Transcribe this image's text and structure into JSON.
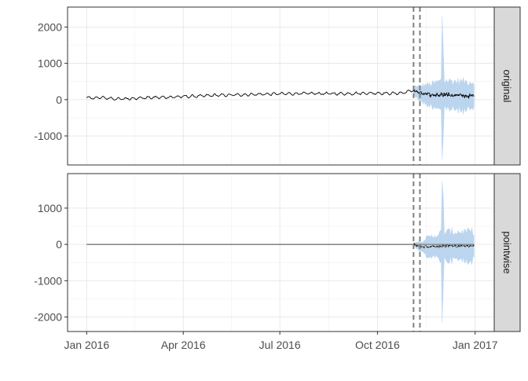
{
  "chart_data": {
    "type": "line",
    "title": "",
    "xlabel": "",
    "ylabel": "",
    "x_ticks": [
      "Jan 2016",
      "Apr 2016",
      "Jul 2016",
      "Oct 2016",
      "Jan 2017"
    ],
    "x_tick_dates": [
      "2016-01-01",
      "2016-04-01",
      "2016-07-01",
      "2016-10-01",
      "2017-01-01"
    ],
    "xlim": [
      "2015-12-14",
      "2017-01-19"
    ],
    "grid": true,
    "legend": "none",
    "vertical_reference_lines": [
      "2016-11-04",
      "2016-11-10"
    ],
    "series_colors": {
      "observed": "#000000",
      "prediction": "#000000",
      "interval": "#b9d3ee",
      "reference_lines": "#808080",
      "zero_line": "#808080"
    },
    "panels": [
      {
        "strip_label": "original",
        "y_ticks": [
          "2000",
          "1000",
          "0",
          "-1000"
        ],
        "y_tick_values": [
          2000,
          1000,
          0,
          -1000
        ],
        "ylim": [
          -1800,
          2550
        ],
        "observed": {
          "start_date": "2016-01-01",
          "end_date": "2016-11-04",
          "knots": [
            [
              "2016-01-01",
              40
            ],
            [
              "2016-01-15",
              55
            ],
            [
              "2016-02-01",
              15
            ],
            [
              "2016-02-15",
              40
            ],
            [
              "2016-03-01",
              55
            ],
            [
              "2016-03-15",
              65
            ],
            [
              "2016-04-01",
              85
            ],
            [
              "2016-04-15",
              95
            ],
            [
              "2016-05-01",
              120
            ],
            [
              "2016-05-15",
              125
            ],
            [
              "2016-06-01",
              140
            ],
            [
              "2016-06-15",
              150
            ],
            [
              "2016-07-01",
              160
            ],
            [
              "2016-07-15",
              165
            ],
            [
              "2016-08-01",
              170
            ],
            [
              "2016-08-15",
              165
            ],
            [
              "2016-09-01",
              165
            ],
            [
              "2016-09-15",
              175
            ],
            [
              "2016-10-01",
              180
            ],
            [
              "2016-10-15",
              170
            ],
            [
              "2016-10-25",
              185
            ],
            [
              "2016-11-04",
              260
            ]
          ],
          "weekly_swing": 30
        },
        "forecast": {
          "start_date": "2016-11-04",
          "end_date": "2016-12-31",
          "center_knots": [
            [
              "2016-11-04",
              250
            ],
            [
              "2016-11-10",
              170
            ],
            [
              "2016-11-20",
              120
            ],
            [
              "2016-12-01",
              150
            ],
            [
              "2016-12-15",
              110
            ],
            [
              "2016-12-31",
              95
            ]
          ],
          "band_half_width_knots": [
            [
              "2016-11-04",
              120
            ],
            [
              "2016-11-15",
              260
            ],
            [
              "2016-12-01",
              380
            ],
            [
              "2016-12-31",
              400
            ]
          ],
          "spikes": [
            {
              "date": "2016-12-01",
              "low": -1650,
              "high": 2300
            },
            {
              "date": "2016-12-02",
              "low": -1000,
              "high": 1350
            }
          ]
        }
      },
      {
        "strip_label": "pointwise",
        "y_ticks": [
          "1000",
          "0",
          "-1000",
          "-2000"
        ],
        "y_tick_values": [
          1000,
          0,
          -1000,
          -2000
        ],
        "ylim": [
          -2400,
          1950
        ],
        "observed": {
          "start_date": "2016-01-01",
          "end_date": "2016-11-04",
          "knots": [
            [
              "2016-01-01",
              0
            ],
            [
              "2016-11-04",
              0
            ]
          ],
          "weekly_swing": 0
        },
        "forecast": {
          "start_date": "2016-11-04",
          "end_date": "2016-12-31",
          "center_knots": [
            [
              "2016-11-04",
              0
            ],
            [
              "2016-11-12",
              -70
            ],
            [
              "2016-11-25",
              -60
            ],
            [
              "2016-12-10",
              -40
            ],
            [
              "2016-12-31",
              -50
            ]
          ],
          "band_half_width_knots": [
            [
              "2016-11-04",
              60
            ],
            [
              "2016-11-15",
              220
            ],
            [
              "2016-12-01",
              380
            ],
            [
              "2016-12-31",
              400
            ]
          ],
          "spikes": [
            {
              "date": "2016-12-01",
              "low": -2150,
              "high": 1750
            },
            {
              "date": "2016-12-02",
              "low": -1100,
              "high": 1300
            }
          ]
        }
      }
    ]
  }
}
